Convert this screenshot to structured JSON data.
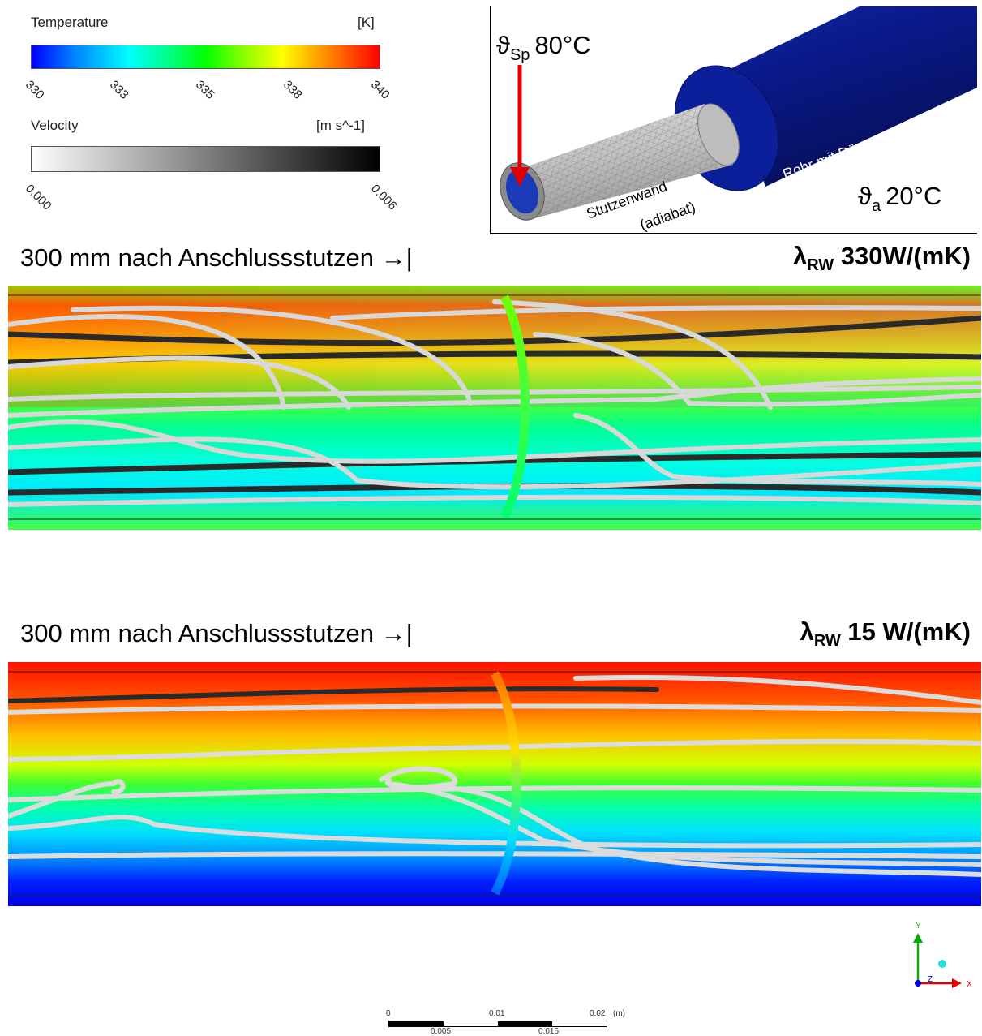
{
  "legend_temperature": {
    "title": "Temperature",
    "unit": "[K]",
    "ticks": [
      "330",
      "333",
      "335",
      "338",
      "340"
    ],
    "colors": [
      "#0000ff",
      "#00ffff",
      "#00ff00",
      "#ffff00",
      "#ff0000"
    ]
  },
  "legend_velocity": {
    "title": "Velocity",
    "unit": "[m s^-1]",
    "ticks": [
      "0.000",
      "0.006"
    ]
  },
  "inset": {
    "inlet_symbol": "ϑ",
    "inlet_sub": "Sp",
    "inlet_value": "80°C",
    "ambient_symbol": "ϑ",
    "ambient_sub": "a",
    "ambient_value": "20°C",
    "label_stutzen": "Stutzenwand",
    "label_adiabat": "(adiabat)",
    "label_rohr": "Rohr mit Dämmung",
    "colors": {
      "pipe": "#0a1a8c",
      "stutzen": "#c8c8c8",
      "arrow": "#e00000"
    }
  },
  "panel_top": {
    "caption": "300 mm nach Anschlussstutzen →|",
    "lambda_symbol": "λ",
    "lambda_sub": "RW",
    "lambda_value": "330W/(mK)"
  },
  "panel_bottom": {
    "caption": "300 mm nach Anschlussstutzen →|",
    "lambda_symbol": "λ",
    "lambda_sub": "RW",
    "lambda_value": "15 W/(mK)"
  },
  "axis_triad": {
    "y": "Y",
    "z": "Z",
    "x": "X"
  },
  "scale_bar": {
    "top_labels": [
      "0",
      "0.01",
      "0.02"
    ],
    "unit": "(m)",
    "bottom_labels": [
      "0.005",
      "0.015"
    ]
  }
}
